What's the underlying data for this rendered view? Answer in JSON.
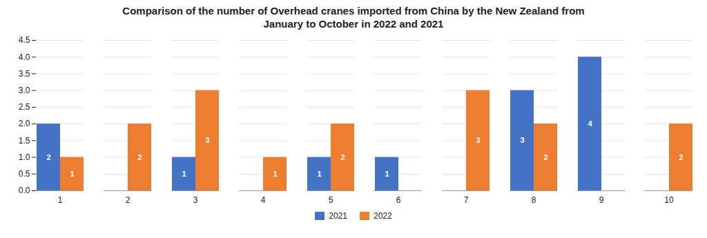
{
  "chart_data": {
    "type": "bar",
    "title": "Comparison of the number of Overhead cranes imported from China by the New Zealand from\nJanuary to October in 2022 and 2021",
    "categories": [
      "1",
      "2",
      "3",
      "4",
      "5",
      "6",
      "7",
      "8",
      "9",
      "10"
    ],
    "series": [
      {
        "name": "2021",
        "color": "#4472c4",
        "values": [
          2,
          0,
          1,
          0,
          1,
          1,
          0,
          3,
          4,
          0
        ],
        "value_labels": [
          "2",
          null,
          "1",
          null,
          "1",
          "1",
          null,
          "3",
          "4",
          null
        ]
      },
      {
        "name": "2022",
        "color": "#ed7d31",
        "values": [
          1,
          2,
          3,
          1,
          2,
          0,
          3,
          2,
          0,
          2
        ],
        "value_labels": [
          "1",
          "2",
          "3",
          "1",
          "2",
          null,
          "3",
          "2",
          null,
          "2"
        ]
      }
    ],
    "ylim": [
      0,
      4.5
    ],
    "yticks": [
      {
        "value": 0,
        "label": "0.0"
      },
      0.5,
      {
        "value": 1,
        "label": "1.0"
      },
      1.5,
      {
        "value": 2,
        "label": "2.0"
      },
      2.5,
      {
        "value": 3,
        "label": "3.0"
      },
      3.5,
      {
        "value": 4,
        "label": "4.0"
      },
      4.5
    ],
    "grid": true,
    "legend": "bottom",
    "data_labels": true
  }
}
